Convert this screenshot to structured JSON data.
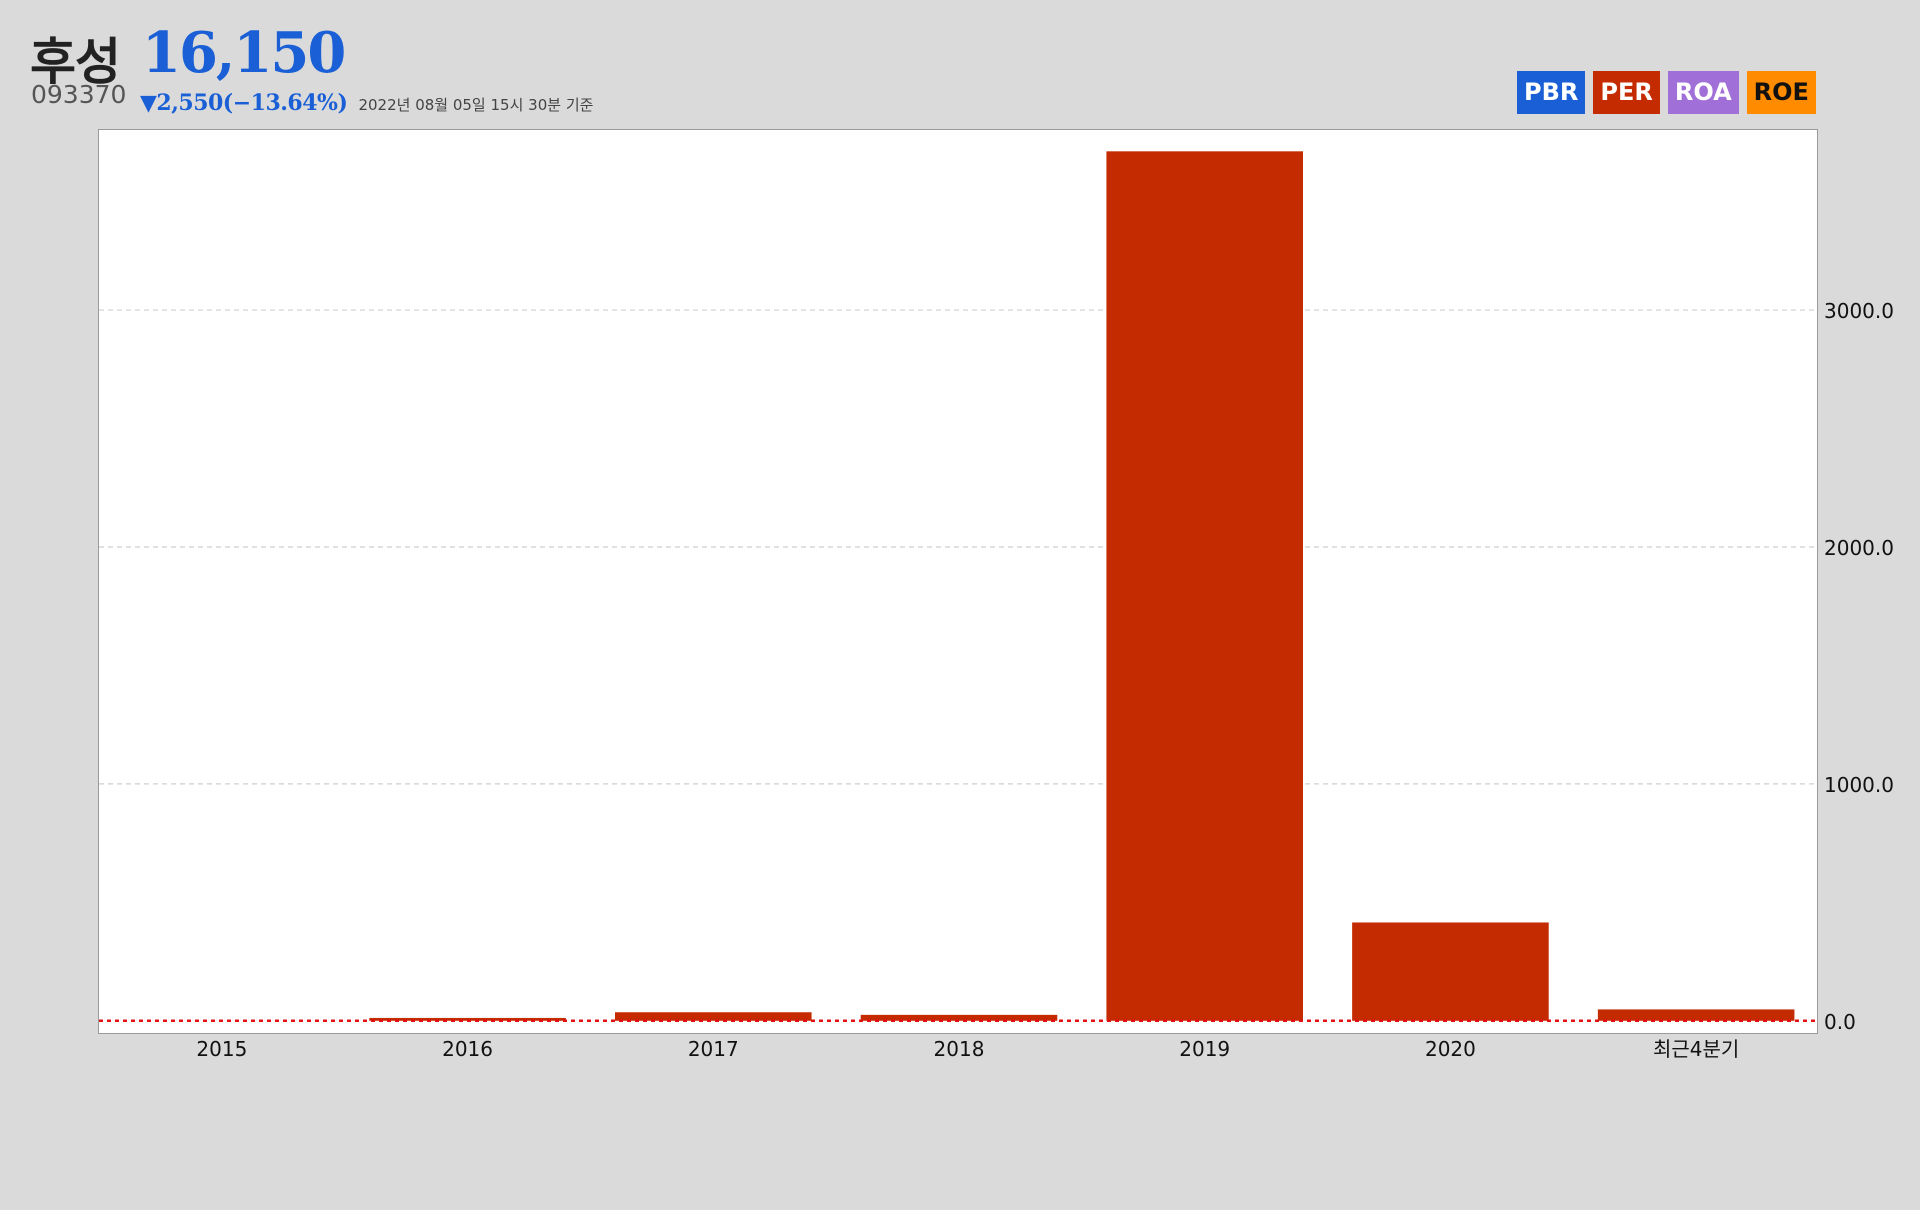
{
  "stock": {
    "name": "후성",
    "code": "093370",
    "price": "16,150",
    "change": "▼2,550(−13.64%)",
    "timestamp": "2022년 08월 05일 15시 30분 기준"
  },
  "metric_tabs": [
    {
      "label": "PBR",
      "bg": "#1a5fd6",
      "fg": "#ffffff"
    },
    {
      "label": "PER",
      "bg": "#c42b00",
      "fg": "#ffffff"
    },
    {
      "label": "ROA",
      "bg": "#a070d8",
      "fg": "#ffffff"
    },
    {
      "label": "ROE",
      "bg": "#ff8c00",
      "fg": "#111111"
    }
  ],
  "chart_data": {
    "type": "bar",
    "title": "",
    "xlabel": "",
    "ylabel": "",
    "categories": [
      "2015",
      "2016",
      "2017",
      "2018",
      "2019",
      "2020",
      "최근4분기"
    ],
    "series": [
      {
        "values": [
          0,
          12,
          36,
          25,
          3670,
          415,
          48
        ]
      }
    ],
    "ylim": [
      -60,
      3760
    ],
    "yticks": [
      0,
      1000,
      2000,
      3000
    ],
    "ytick_labels": [
      "0.0",
      "1000.0",
      "2000.0",
      "3000.0"
    ],
    "y_axis_side": "right",
    "grid": "horizontal dashed",
    "zero_line": "red dotted",
    "legend": "none",
    "bar_color": "#c42b00"
  }
}
